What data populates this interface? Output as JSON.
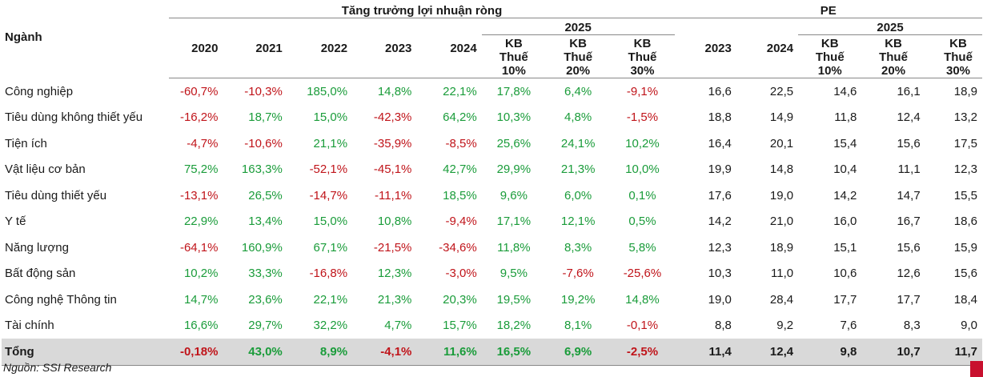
{
  "header": {
    "industry_label": "Ngành",
    "growth_group": "Tăng trưởng lợi nhuận ròng",
    "pe_group": "PE",
    "sub_2025": "2025",
    "growth_years": [
      "2020",
      "2021",
      "2022",
      "2023",
      "2024"
    ],
    "growth_tax": [
      "KB Thuế 10%",
      "KB Thuế 20%",
      "KB Thuế 30%"
    ],
    "pe_years": [
      "2023",
      "2024"
    ],
    "pe_tax": [
      "KB Thuế 10%",
      "KB Thuế 20%",
      "KB Thuế 30%"
    ]
  },
  "rows": [
    {
      "name": "Công nghiệp",
      "growth": [
        "-60,7%",
        "-10,3%",
        "185,0%",
        "14,8%",
        "22,1%",
        "17,8%",
        "6,4%",
        "-9,1%"
      ],
      "pe": [
        "16,6",
        "22,5",
        "14,6",
        "16,1",
        "18,9"
      ]
    },
    {
      "name": "Tiêu dùng không thiết yếu",
      "growth": [
        "-16,2%",
        "18,7%",
        "15,0%",
        "-42,3%",
        "64,2%",
        "10,3%",
        "4,8%",
        "-1,5%"
      ],
      "pe": [
        "18,8",
        "14,9",
        "11,8",
        "12,4",
        "13,2"
      ]
    },
    {
      "name": "Tiện ích",
      "growth": [
        "-4,7%",
        "-10,6%",
        "21,1%",
        "-35,9%",
        "-8,5%",
        "25,6%",
        "24,1%",
        "10,2%"
      ],
      "pe": [
        "16,4",
        "20,1",
        "15,4",
        "15,6",
        "17,5"
      ]
    },
    {
      "name": "Vật liệu cơ bản",
      "growth": [
        "75,2%",
        "163,3%",
        "-52,1%",
        "-45,1%",
        "42,7%",
        "29,9%",
        "21,3%",
        "10,0%"
      ],
      "pe": [
        "19,9",
        "14,8",
        "10,4",
        "11,1",
        "12,3"
      ]
    },
    {
      "name": "Tiêu dùng thiết yếu",
      "growth": [
        "-13,1%",
        "26,5%",
        "-14,7%",
        "-11,1%",
        "18,5%",
        "9,6%",
        "6,0%",
        "0,1%"
      ],
      "pe": [
        "17,6",
        "19,0",
        "14,2",
        "14,7",
        "15,5"
      ]
    },
    {
      "name": "Y tế",
      "growth": [
        "22,9%",
        "13,4%",
        "15,0%",
        "10,8%",
        "-9,4%",
        "17,1%",
        "12,1%",
        "0,5%"
      ],
      "pe": [
        "14,2",
        "21,0",
        "16,0",
        "16,7",
        "18,6"
      ]
    },
    {
      "name": "Năng lượng",
      "growth": [
        "-64,1%",
        "160,9%",
        "67,1%",
        "-21,5%",
        "-34,6%",
        "11,8%",
        "8,3%",
        "5,8%"
      ],
      "pe": [
        "12,3",
        "18,9",
        "15,1",
        "15,6",
        "15,9"
      ]
    },
    {
      "name": "Bất động sản",
      "growth": [
        "10,2%",
        "33,3%",
        "-16,8%",
        "12,3%",
        "-3,0%",
        "9,5%",
        "-7,6%",
        "-25,6%"
      ],
      "pe": [
        "10,3",
        "11,0",
        "10,6",
        "12,6",
        "15,6"
      ]
    },
    {
      "name": "Công nghệ Thông tin",
      "growth": [
        "14,7%",
        "23,6%",
        "22,1%",
        "21,3%",
        "20,3%",
        "19,5%",
        "19,2%",
        "14,8%"
      ],
      "pe": [
        "19,0",
        "28,4",
        "17,7",
        "17,7",
        "18,4"
      ]
    },
    {
      "name": "Tài chính",
      "growth": [
        "16,6%",
        "29,7%",
        "32,2%",
        "4,7%",
        "15,7%",
        "18,2%",
        "8,1%",
        "-0,1%"
      ],
      "pe": [
        "8,8",
        "9,2",
        "7,6",
        "8,3",
        "9,0"
      ]
    }
  ],
  "total": {
    "name": "Tổng",
    "growth": [
      "-0,18%",
      "43,0%",
      "8,9%",
      "-4,1%",
      "11,6%",
      "16,5%",
      "6,9%",
      "-2,5%"
    ],
    "pe": [
      "11,4",
      "12,4",
      "9,8",
      "10,7",
      "11,7"
    ]
  },
  "source": "Nguồn: SSI Research",
  "colors": {
    "negative": "#c0141a",
    "positive": "#1a9c3a",
    "total_bg": "#d9d9d9",
    "corner": "#c8102e"
  }
}
